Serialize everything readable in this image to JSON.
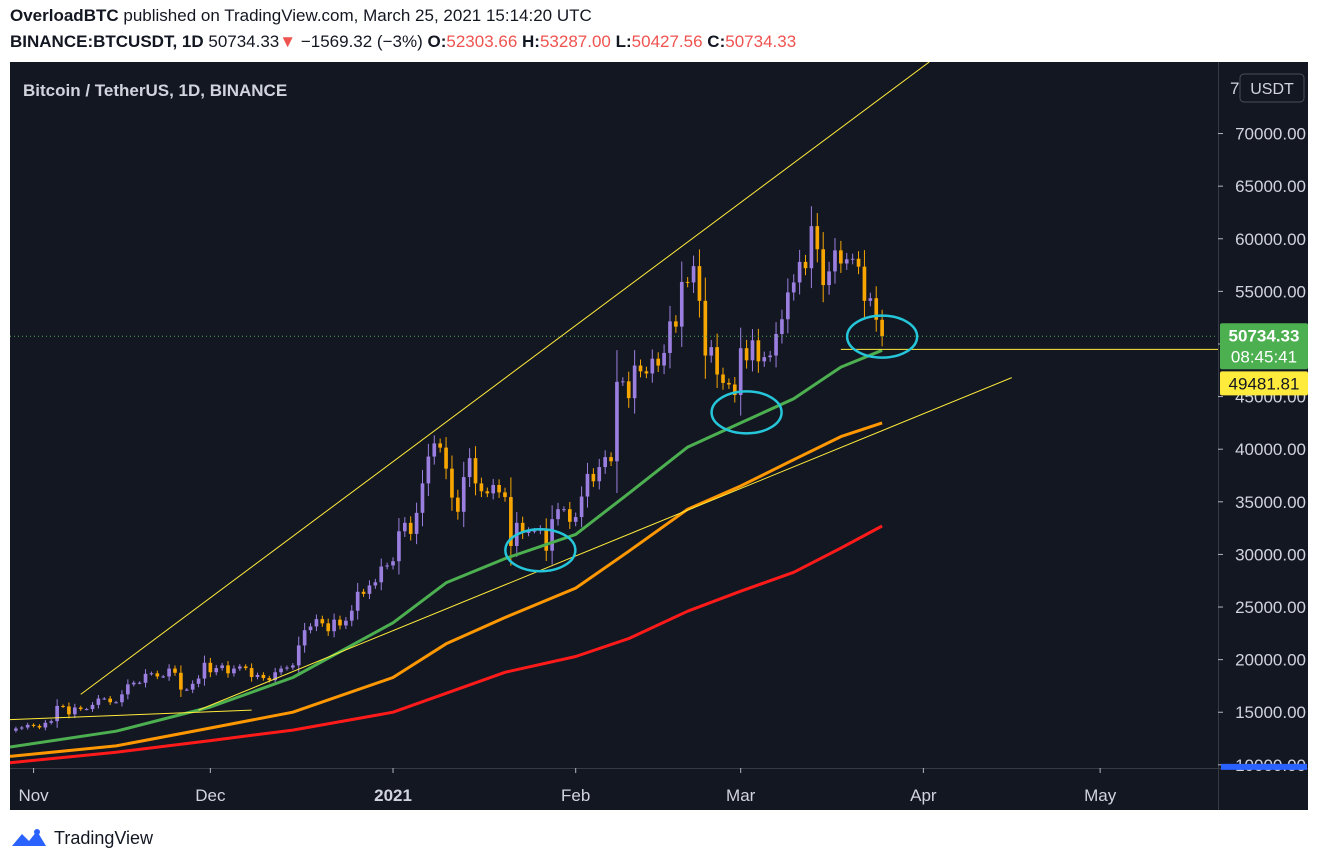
{
  "header": {
    "author": "OverloadBTC",
    "published_text": "published on TradingView.com, March 25, 2021 15:14:20 UTC",
    "symbol": "BINANCE:BTCUSDT, 1D",
    "last": "50734.33",
    "change": "−1569.32 (−3%)",
    "o_label": "O:",
    "o": "52303.66",
    "h_label": "H:",
    "h": "53287.00",
    "l_label": "L:",
    "l": "50427.56",
    "c_label": "C:",
    "c": "50734.33"
  },
  "footer": {
    "brand": "TradingView"
  },
  "chart_data": {
    "type": "candlestick",
    "title": "Bitcoin / TetherUS, 1D, BINANCE",
    "currency_button": "USDT",
    "x_ticks": [
      {
        "label": "Nov",
        "date": "2020-11-01"
      },
      {
        "label": "Dec",
        "date": "2020-12-01"
      },
      {
        "label": "2021",
        "date": "2021-01-01"
      },
      {
        "label": "Feb",
        "date": "2021-02-01"
      },
      {
        "label": "Mar",
        "date": "2021-03-01"
      },
      {
        "label": "Apr",
        "date": "2021-04-01"
      },
      {
        "label": "May",
        "date": "2021-05-01"
      }
    ],
    "y_ticks": [
      10000,
      15000,
      20000,
      25000,
      30000,
      35000,
      40000,
      45000,
      50000,
      55000,
      60000,
      65000,
      70000
    ],
    "y_tick_labels": [
      "10000.00",
      "15000.00",
      "20000.00",
      "25000.00",
      "30000.00",
      "35000.00",
      "40000.00",
      "45000.00",
      "",
      "55000.00",
      "60000.00",
      "65000.00",
      "70000.00"
    ],
    "top_tick_label": "7",
    "xlim": [
      "2020-10-28",
      "2021-05-21"
    ],
    "ylim": [
      9700,
      76800
    ],
    "price_label": {
      "value": "50734.33",
      "countdown": "08:45:41",
      "color": "#4caf50"
    },
    "level_label": {
      "value": "49481.81",
      "color": "#ffeb3b"
    },
    "colors": {
      "up": "#9b7fe0",
      "down": "#f7a600",
      "background": "#131722"
    },
    "closes": [
      [
        "2020-10-28",
        13250
      ],
      [
        "2020-10-29",
        13450
      ],
      [
        "2020-10-30",
        13550
      ],
      [
        "2020-10-31",
        13800
      ],
      [
        "2020-11-01",
        13700
      ],
      [
        "2020-11-02",
        13550
      ],
      [
        "2020-11-03",
        14000
      ],
      [
        "2020-11-04",
        14150
      ],
      [
        "2020-11-05",
        15600
      ],
      [
        "2020-11-06",
        15550
      ],
      [
        "2020-11-07",
        14800
      ],
      [
        "2020-11-08",
        15450
      ],
      [
        "2020-11-09",
        15300
      ],
      [
        "2020-11-10",
        15300
      ],
      [
        "2020-11-11",
        15700
      ],
      [
        "2020-11-12",
        16300
      ],
      [
        "2020-11-13",
        16300
      ],
      [
        "2020-11-14",
        15950
      ],
      [
        "2020-11-15",
        15950
      ],
      [
        "2020-11-16",
        16700
      ],
      [
        "2020-11-17",
        17650
      ],
      [
        "2020-11-18",
        17800
      ],
      [
        "2020-11-19",
        17800
      ],
      [
        "2020-11-20",
        18650
      ],
      [
        "2020-11-21",
        18700
      ],
      [
        "2020-11-22",
        18400
      ],
      [
        "2020-11-23",
        18400
      ],
      [
        "2020-11-24",
        19150
      ],
      [
        "2020-11-25",
        18750
      ],
      [
        "2020-11-26",
        17150
      ],
      [
        "2020-11-27",
        17150
      ],
      [
        "2020-11-28",
        17700
      ],
      [
        "2020-11-29",
        18200
      ],
      [
        "2020-11-30",
        19700
      ],
      [
        "2020-12-01",
        18800
      ],
      [
        "2020-12-02",
        19200
      ],
      [
        "2020-12-03",
        19450
      ],
      [
        "2020-12-04",
        18700
      ],
      [
        "2020-12-05",
        19150
      ],
      [
        "2020-12-06",
        19350
      ],
      [
        "2020-12-07",
        19200
      ],
      [
        "2020-12-08",
        18350
      ],
      [
        "2020-12-09",
        18550
      ],
      [
        "2020-12-10",
        18250
      ],
      [
        "2020-12-11",
        18050
      ],
      [
        "2020-12-12",
        18800
      ],
      [
        "2020-12-13",
        19150
      ],
      [
        "2020-12-14",
        19250
      ],
      [
        "2020-12-15",
        19450
      ],
      [
        "2020-12-16",
        21350
      ],
      [
        "2020-12-17",
        22800
      ],
      [
        "2020-12-18",
        23150
      ],
      [
        "2020-12-19",
        23850
      ],
      [
        "2020-12-20",
        23450
      ],
      [
        "2020-12-21",
        22700
      ],
      [
        "2020-12-22",
        23800
      ],
      [
        "2020-12-23",
        23250
      ],
      [
        "2020-12-24",
        23700
      ],
      [
        "2020-12-25",
        24650
      ],
      [
        "2020-12-26",
        26450
      ],
      [
        "2020-12-27",
        26250
      ],
      [
        "2020-12-28",
        27050
      ],
      [
        "2020-12-29",
        27350
      ],
      [
        "2020-12-30",
        28850
      ],
      [
        "2020-12-31",
        28950
      ],
      [
        "2021-01-01",
        29350
      ],
      [
        "2021-01-02",
        32200
      ],
      [
        "2021-01-03",
        33000
      ],
      [
        "2021-01-04",
        31950
      ],
      [
        "2021-01-05",
        33950
      ],
      [
        "2021-01-06",
        36750
      ],
      [
        "2021-01-07",
        39300
      ],
      [
        "2021-01-08",
        40550
      ],
      [
        "2021-01-09",
        40150
      ],
      [
        "2021-01-10",
        38150
      ],
      [
        "2021-01-11",
        35400
      ],
      [
        "2021-01-12",
        34050
      ],
      [
        "2021-01-13",
        37350
      ],
      [
        "2021-01-14",
        39150
      ],
      [
        "2021-01-15",
        36750
      ],
      [
        "2021-01-16",
        36000
      ],
      [
        "2021-01-17",
        35800
      ],
      [
        "2021-01-18",
        36600
      ],
      [
        "2021-01-19",
        35900
      ],
      [
        "2021-01-20",
        35450
      ],
      [
        "2021-01-21",
        30800
      ],
      [
        "2021-01-22",
        33000
      ],
      [
        "2021-01-23",
        32050
      ],
      [
        "2021-01-24",
        32250
      ],
      [
        "2021-01-25",
        32250
      ],
      [
        "2021-01-26",
        32450
      ],
      [
        "2021-01-27",
        30350
      ],
      [
        "2021-01-28",
        33350
      ],
      [
        "2021-01-29",
        34300
      ],
      [
        "2021-01-30",
        34300
      ],
      [
        "2021-01-31",
        33100
      ],
      [
        "2021-02-01",
        33550
      ],
      [
        "2021-02-02",
        35500
      ],
      [
        "2021-02-03",
        37650
      ],
      [
        "2021-02-04",
        36950
      ],
      [
        "2021-02-05",
        38300
      ],
      [
        "2021-02-06",
        39250
      ],
      [
        "2021-02-07",
        38850
      ],
      [
        "2021-02-08",
        46400
      ],
      [
        "2021-02-09",
        46450
      ],
      [
        "2021-02-10",
        44850
      ],
      [
        "2021-02-11",
        47950
      ],
      [
        "2021-02-12",
        47400
      ],
      [
        "2021-02-13",
        47200
      ],
      [
        "2021-02-14",
        48600
      ],
      [
        "2021-02-15",
        47950
      ],
      [
        "2021-02-16",
        49150
      ],
      [
        "2021-02-17",
        52150
      ],
      [
        "2021-02-18",
        51650
      ],
      [
        "2021-02-19",
        55900
      ],
      [
        "2021-02-20",
        55850
      ],
      [
        "2021-02-21",
        57400
      ],
      [
        "2021-02-22",
        54100
      ],
      [
        "2021-02-23",
        48900
      ],
      [
        "2021-02-24",
        49700
      ],
      [
        "2021-02-25",
        47100
      ],
      [
        "2021-02-26",
        46300
      ],
      [
        "2021-02-27",
        46150
      ],
      [
        "2021-02-28",
        45150
      ],
      [
        "2021-03-01",
        49600
      ],
      [
        "2021-03-02",
        48450
      ],
      [
        "2021-03-03",
        50350
      ],
      [
        "2021-03-04",
        48350
      ],
      [
        "2021-03-05",
        48750
      ],
      [
        "2021-03-06",
        48900
      ],
      [
        "2021-03-07",
        50950
      ],
      [
        "2021-03-08",
        52350
      ],
      [
        "2021-03-09",
        54900
      ],
      [
        "2021-03-10",
        55850
      ],
      [
        "2021-03-11",
        57800
      ],
      [
        "2021-03-12",
        57200
      ],
      [
        "2021-03-13",
        61200
      ],
      [
        "2021-03-14",
        59000
      ],
      [
        "2021-03-15",
        55600
      ],
      [
        "2021-03-16",
        56900
      ],
      [
        "2021-03-17",
        58900
      ],
      [
        "2021-03-18",
        57650
      ],
      [
        "2021-03-19",
        58050
      ],
      [
        "2021-03-20",
        58100
      ],
      [
        "2021-03-21",
        57350
      ],
      [
        "2021-03-22",
        54100
      ],
      [
        "2021-03-23",
        54350
      ],
      [
        "2021-03-24",
        52300
      ],
      [
        "2021-03-25",
        50734
      ]
    ],
    "lines": [
      {
        "name": "green",
        "color": "#4caf50",
        "points": [
          [
            "2020-10-28",
            11700
          ],
          [
            "2020-11-15",
            13200
          ],
          [
            "2020-12-01",
            15500
          ],
          [
            "2020-12-15",
            18300
          ],
          [
            "2021-01-01",
            23500
          ],
          [
            "2021-01-10",
            27300
          ],
          [
            "2021-01-20",
            29600
          ],
          [
            "2021-02-01",
            31900
          ],
          [
            "2021-02-10",
            35800
          ],
          [
            "2021-02-20",
            40200
          ],
          [
            "2021-03-01",
            42500
          ],
          [
            "2021-03-10",
            44800
          ],
          [
            "2021-03-18",
            47800
          ],
          [
            "2021-03-25",
            49400
          ]
        ]
      },
      {
        "name": "orange",
        "color": "#ff9800",
        "points": [
          [
            "2020-10-28",
            10800
          ],
          [
            "2020-11-15",
            11800
          ],
          [
            "2020-12-01",
            13500
          ],
          [
            "2020-12-15",
            15000
          ],
          [
            "2021-01-01",
            18300
          ],
          [
            "2021-01-10",
            21500
          ],
          [
            "2021-01-20",
            24000
          ],
          [
            "2021-02-01",
            26800
          ],
          [
            "2021-02-10",
            30300
          ],
          [
            "2021-02-20",
            34300
          ],
          [
            "2021-03-01",
            36500
          ],
          [
            "2021-03-10",
            39000
          ],
          [
            "2021-03-18",
            41200
          ],
          [
            "2021-03-25",
            42500
          ]
        ]
      },
      {
        "name": "red",
        "color": "#ff1a1a",
        "points": [
          [
            "2020-10-28",
            10200
          ],
          [
            "2020-11-15",
            11200
          ],
          [
            "2020-12-01",
            12300
          ],
          [
            "2020-12-15",
            13300
          ],
          [
            "2021-01-01",
            15000
          ],
          [
            "2021-01-10",
            16800
          ],
          [
            "2021-01-20",
            18800
          ],
          [
            "2021-02-01",
            20300
          ],
          [
            "2021-02-10",
            22000
          ],
          [
            "2021-02-20",
            24600
          ],
          [
            "2021-03-01",
            26500
          ],
          [
            "2021-03-10",
            28300
          ],
          [
            "2021-03-18",
            30600
          ],
          [
            "2021-03-25",
            32700
          ]
        ]
      }
    ],
    "drawings": [
      {
        "type": "trendline",
        "color": "#ffeb3b",
        "from": [
          "2020-11-09",
          16700
        ],
        "to": [
          "2021-04-02",
          76800
        ]
      },
      {
        "type": "trendline",
        "color": "#ffeb3b",
        "from": [
          "2020-11-29",
          15200
        ],
        "to": [
          "2021-04-16",
          46800
        ]
      },
      {
        "type": "trendline",
        "color": "#ffeb3b",
        "from": [
          "2020-10-28",
          14300
        ],
        "to": [
          "2020-12-08",
          15200
        ]
      },
      {
        "type": "hline",
        "color": "#ffeb3b",
        "value": 49481.81,
        "from": "2021-03-18"
      },
      {
        "type": "circle",
        "color": "#26c6da",
        "center": [
          "2021-01-26",
          30400
        ]
      },
      {
        "type": "circle",
        "color": "#26c6da",
        "center": [
          "2021-03-02",
          43500
        ]
      },
      {
        "type": "circle",
        "color": "#26c6da",
        "center": [
          "2021-03-25",
          50700
        ]
      }
    ]
  }
}
